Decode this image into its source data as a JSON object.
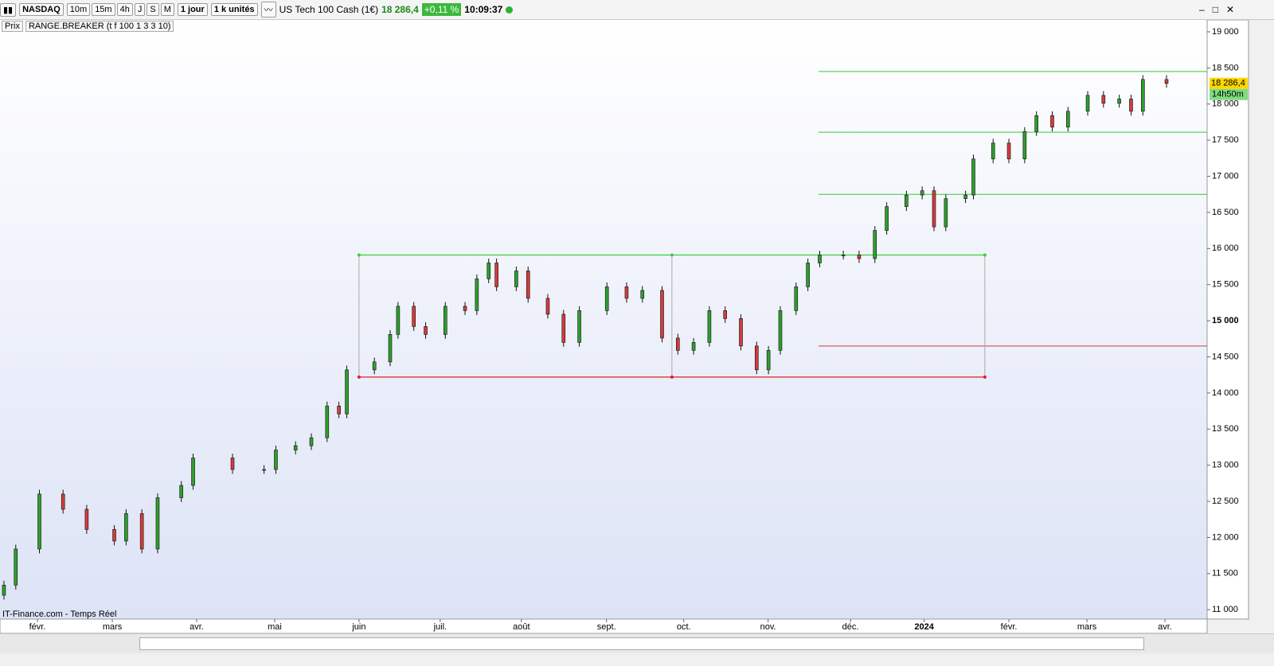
{
  "toolbar": {
    "symbol": "NASDAQ",
    "intervals": [
      "10m",
      "15m",
      "4h",
      "J",
      "S",
      "M"
    ],
    "period": "1 jour",
    "units": "1 k unités",
    "instrument": "US Tech 100 Cash (1€)",
    "price": "18 286,4",
    "change": "+0,11 %",
    "time": "10:09:37"
  },
  "indicator_bar": {
    "price_label": "Prix",
    "indicator": "RANGE.BREAKER (t f 100 1 3 3 10)"
  },
  "source": "IT-Finance.com - Temps Réel",
  "chart_data": {
    "type": "candlestick",
    "up_color": "#2e9e2e",
    "down_color": "#d23c3c",
    "x": [
      1,
      4,
      10,
      16,
      22,
      29,
      32,
      36,
      40,
      46,
      49,
      59,
      67,
      70,
      75,
      79,
      83,
      86,
      88,
      95,
      99,
      101,
      105,
      108,
      113,
      118,
      121,
      124,
      126,
      131,
      134,
      139,
      143,
      147,
      154,
      159,
      163,
      168,
      172,
      176,
      180,
      184,
      188,
      192,
      195,
      198,
      202,
      205,
      208,
      214,
      218,
      222,
      225,
      230,
      234,
      237,
      240,
      245,
      247,
      252,
      256,
      260,
      263,
      267,
      271,
      276,
      280,
      284,
      287,
      290,
      296
    ],
    "open": [
      11200,
      11340,
      11840,
      12600,
      12390,
      12110,
      11950,
      12330,
      11840,
      12550,
      12720,
      13100,
      12940,
      12940,
      13210,
      13270,
      13380,
      13820,
      13710,
      14320,
      14430,
      14810,
      15200,
      14920,
      14810,
      15200,
      15140,
      15580,
      15800,
      15470,
      15690,
      15310,
      15090,
      14700,
      15140,
      15470,
      15310,
      15420,
      14760,
      14590,
      14700,
      15140,
      15030,
      14650,
      14320,
      14590,
      15140,
      15470,
      15800,
      15910,
      15910,
      15860,
      16250,
      16580,
      16740,
      16800,
      16300,
      16690,
      16740,
      17240,
      17460,
      17240,
      17620,
      17840,
      17680,
      17900,
      18120,
      18010,
      18070,
      17900,
      18340
    ],
    "high": [
      11400,
      11900,
      12660,
      12660,
      12450,
      12170,
      12390,
      12390,
      12610,
      12780,
      13160,
      13160,
      13000,
      13270,
      13330,
      13440,
      13880,
      13880,
      14380,
      14490,
      14870,
      15260,
      15260,
      14980,
      15260,
      15260,
      15640,
      15860,
      15860,
      15750,
      15750,
      15370,
      15150,
      15200,
      15530,
      15530,
      15480,
      15480,
      14820,
      14760,
      15200,
      15200,
      15090,
      14710,
      14650,
      15200,
      15530,
      15860,
      15970,
      15970,
      15970,
      16310,
      16640,
      16800,
      16860,
      16860,
      16750,
      16800,
      17300,
      17520,
      17520,
      17680,
      17900,
      17900,
      17960,
      18180,
      18180,
      18130,
      18130,
      18400,
      18400
    ],
    "low": [
      11140,
      11280,
      11780,
      12330,
      12050,
      11890,
      11890,
      11780,
      11780,
      12490,
      12660,
      12880,
      12880,
      12880,
      13150,
      13210,
      13320,
      13650,
      13650,
      14260,
      14370,
      14750,
      14860,
      14750,
      14750,
      15080,
      15080,
      15520,
      15410,
      15410,
      15250,
      15030,
      14640,
      14640,
      15080,
      15250,
      15250,
      14700,
      14530,
      14530,
      14640,
      14970,
      14590,
      14260,
      14260,
      14530,
      15080,
      15410,
      15740,
      15850,
      15800,
      15800,
      16190,
      16520,
      16680,
      16240,
      16240,
      16630,
      16680,
      17180,
      17180,
      17180,
      17560,
      17620,
      17620,
      17840,
      17950,
      17950,
      17840,
      17840,
      18226
    ],
    "close": [
      11340,
      11840,
      12600,
      12390,
      12110,
      11950,
      12330,
      11840,
      12550,
      12720,
      13100,
      12940,
      12940,
      13210,
      13270,
      13380,
      13820,
      13710,
      14320,
      14430,
      14810,
      15200,
      14920,
      14810,
      15200,
      15140,
      15580,
      15800,
      15470,
      15690,
      15310,
      15090,
      14700,
      15140,
      15470,
      15310,
      15420,
      14760,
      14590,
      14700,
      15140,
      15030,
      14650,
      14320,
      14590,
      15140,
      15470,
      15800,
      15910,
      15910,
      15860,
      16250,
      16580,
      16740,
      16800,
      16300,
      16690,
      16740,
      17240,
      17460,
      17240,
      17620,
      17840,
      17680,
      17900,
      18120,
      18010,
      18070,
      17900,
      18340,
      18286
    ],
    "xlim": [
      0,
      306.3
    ],
    "xticks": [
      {
        "value": 9.5,
        "label": "févr."
      },
      {
        "value": 28.5,
        "label": "mars"
      },
      {
        "value": 49.9,
        "label": "avr."
      },
      {
        "value": 69.7,
        "label": "mai"
      },
      {
        "value": 91.1,
        "label": "juin"
      },
      {
        "value": 111.7,
        "label": "juil."
      },
      {
        "value": 132.3,
        "label": "août"
      },
      {
        "value": 153.9,
        "label": "sept."
      },
      {
        "value": 173.5,
        "label": "oct."
      },
      {
        "value": 194.9,
        "label": "nov."
      },
      {
        "value": 215.8,
        "label": "déc."
      },
      {
        "value": 234.5,
        "label": "2024"
      },
      {
        "value": 256,
        "label": "févr."
      },
      {
        "value": 275.8,
        "label": "mars"
      },
      {
        "value": 295.6,
        "label": "avr."
      }
    ],
    "ylim": [
      10870,
      19165
    ],
    "yticks": [
      {
        "value": 11000,
        "label": "11 000"
      },
      {
        "value": 11500,
        "label": "11 500"
      },
      {
        "value": 12000,
        "label": "12 000"
      },
      {
        "value": 12500,
        "label": "12 500"
      },
      {
        "value": 13000,
        "label": "13 000"
      },
      {
        "value": 13500,
        "label": "13 500"
      },
      {
        "value": 14000,
        "label": "14 000"
      },
      {
        "value": 14500,
        "label": "14 500"
      },
      {
        "value": 15000,
        "label": "15 000"
      },
      {
        "value": 15500,
        "label": "15 500"
      },
      {
        "value": 16000,
        "label": "16 000"
      },
      {
        "value": 16500,
        "label": "16 500"
      },
      {
        "value": 17000,
        "label": "17 000"
      },
      {
        "value": 17500,
        "label": "17 500"
      },
      {
        "value": 18000,
        "label": "18 000"
      },
      {
        "value": 18500,
        "label": "18 500"
      },
      {
        "value": 19000,
        "label": "19 000"
      }
    ],
    "last_price": {
      "value": 18286.4,
      "label": "18 286,4",
      "countdown": "14h50m"
    },
    "range_box": {
      "x": [
        91.1,
        249.9
      ],
      "high": 15910,
      "low": 14220
    },
    "levels": [
      {
        "value": 18450,
        "from": 207.7,
        "color": "#39c939"
      },
      {
        "value": 17610,
        "from": 207.7,
        "color": "#39c939"
      },
      {
        "value": 16750,
        "from": 207.7,
        "color": "#39c939"
      },
      {
        "value": 14650,
        "from": 207.7,
        "color": "#d23c3c"
      }
    ]
  }
}
